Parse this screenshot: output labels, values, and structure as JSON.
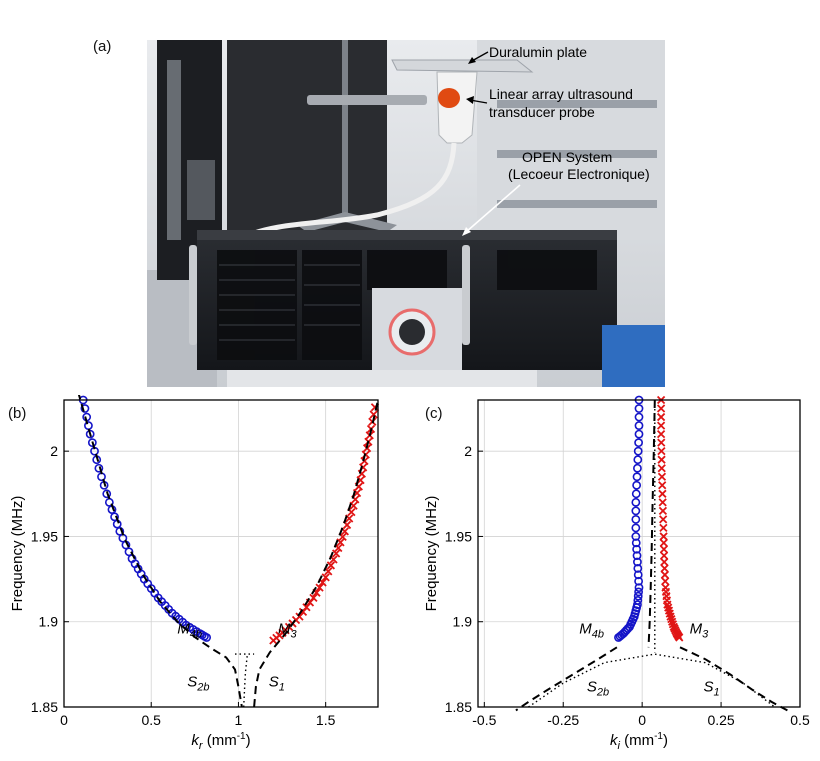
{
  "panels": {
    "a": "(a)",
    "b": "(b)",
    "c": "(c)"
  },
  "photo_annotations": {
    "plate": "Duralumin plate",
    "probe_line1": "Linear array ultrasound",
    "probe_line2": "transducer probe",
    "system_line1": "OPEN System",
    "system_line2": "(Lecoeur Electronique)"
  },
  "colors": {
    "blue": "#1515c8",
    "red": "#e01515",
    "black": "#000000"
  },
  "chart_data": [
    {
      "type": "line",
      "panel": "(b)",
      "xlabel_main": "k",
      "xlabel_sub": "r",
      "xlabel_unit": " (mm",
      "xlabel_sup": "-1",
      "xlabel_close": ")",
      "ylabel": "Frequency (MHz)",
      "xlim": [
        0,
        1.8
      ],
      "ylim": [
        1.85,
        2.03
      ],
      "xticks": [
        "0",
        "0.5",
        "1",
        "1.5"
      ],
      "xtick_values": [
        0,
        0.5,
        1,
        1.5
      ],
      "yticks": [
        "1.85",
        "1.9",
        "1.95",
        "2"
      ],
      "ytick_values": [
        1.85,
        1.9,
        1.95,
        2.0
      ],
      "grid": true,
      "labels": [
        {
          "main": "M",
          "sub": "4b",
          "x": 0.72,
          "y": 1.893
        },
        {
          "main": "M",
          "sub": "3",
          "x": 1.28,
          "y": 1.893
        },
        {
          "main": "S",
          "sub": "2b",
          "x": 0.77,
          "y": 1.862
        },
        {
          "main": "S",
          "sub": "1",
          "x": 1.22,
          "y": 1.862
        }
      ],
      "series": [
        {
          "style": "circles",
          "color": "#1515c8",
          "x": [
            0.11,
            0.15,
            0.2,
            0.26,
            0.32,
            0.39,
            0.46,
            0.54,
            0.62,
            0.7,
            0.78,
            0.83
          ],
          "y": [
            2.03,
            2.01,
            1.99,
            1.97,
            1.953,
            1.937,
            1.925,
            1.914,
            1.905,
            1.898,
            1.893,
            1.89
          ]
        },
        {
          "style": "crosses",
          "color": "#e01515",
          "x": [
            1.2,
            1.27,
            1.35,
            1.43,
            1.5,
            1.56,
            1.61,
            1.66,
            1.7,
            1.73,
            1.76,
            1.79
          ],
          "y": [
            1.889,
            1.895,
            1.903,
            1.914,
            1.926,
            1.94,
            1.953,
            1.968,
            1.983,
            1.998,
            2.013,
            2.03
          ]
        },
        {
          "style": "dashed",
          "color": "#000000",
          "x": [
            0.08,
            0.15,
            0.25,
            0.35,
            0.45,
            0.55,
            0.65,
            0.75,
            0.85,
            0.93,
            0.98,
            1.0,
            1.02
          ],
          "y": [
            2.035,
            2.01,
            1.975,
            1.948,
            1.928,
            1.912,
            1.9,
            1.891,
            1.884,
            1.879,
            1.872,
            1.862,
            1.85
          ]
        },
        {
          "style": "dashed",
          "color": "#000000",
          "x": [
            1.09,
            1.1,
            1.12,
            1.18,
            1.27,
            1.36,
            1.45,
            1.53,
            1.6,
            1.66,
            1.71,
            1.76,
            1.8
          ],
          "y": [
            1.85,
            1.862,
            1.872,
            1.882,
            1.893,
            1.906,
            1.921,
            1.938,
            1.956,
            1.974,
            1.992,
            2.012,
            2.03
          ]
        },
        {
          "style": "dotted",
          "color": "#000000",
          "x": [
            1.03,
            1.035,
            1.04,
            1.045,
            1.05
          ],
          "y": [
            1.85,
            1.86,
            1.87,
            1.875,
            1.88
          ]
        },
        {
          "style": "dotted",
          "color": "#000000",
          "x": [
            0.98,
            1.03,
            1.09
          ],
          "y": [
            1.881,
            1.881,
            1.881
          ]
        }
      ]
    },
    {
      "type": "line",
      "panel": "(c)",
      "xlabel_main": "k",
      "xlabel_sub": "i",
      "xlabel_unit": " (mm",
      "xlabel_sup": "-1",
      "xlabel_close": ")",
      "ylabel": "Frequency (MHz)",
      "xlim": [
        -0.52,
        0.5
      ],
      "ylim": [
        1.85,
        2.03
      ],
      "xticks": [
        "-0.5",
        "-0.25",
        "0",
        "0.25",
        "0.5"
      ],
      "xtick_values": [
        -0.5,
        -0.25,
        0,
        0.25,
        0.5
      ],
      "yticks": [
        "1.85",
        "1.9",
        "1.95",
        "2"
      ],
      "ytick_values": [
        1.85,
        1.9,
        1.95,
        2.0
      ],
      "grid": true,
      "labels": [
        {
          "main": "M",
          "sub": "4b",
          "x": -0.16,
          "y": 1.893
        },
        {
          "main": "M",
          "sub": "3",
          "x": 0.18,
          "y": 1.893
        },
        {
          "main": "S",
          "sub": "2b",
          "x": -0.14,
          "y": 1.859
        },
        {
          "main": "S",
          "sub": "1",
          "x": 0.22,
          "y": 1.859
        }
      ],
      "series": [
        {
          "style": "circles",
          "color": "#1515c8",
          "x": [
            -0.01,
            -0.01,
            -0.015,
            -0.02,
            -0.02,
            -0.015,
            -0.01,
            -0.015,
            -0.025,
            -0.04,
            -0.06,
            -0.08
          ],
          "y": [
            2.03,
            2.01,
            1.99,
            1.97,
            1.95,
            1.935,
            1.92,
            1.91,
            1.903,
            1.897,
            1.893,
            1.89
          ]
        },
        {
          "style": "crosses",
          "color": "#e01515",
          "x": [
            0.06,
            0.06,
            0.062,
            0.065,
            0.068,
            0.07,
            0.074,
            0.08,
            0.09,
            0.1,
            0.11,
            0.12
          ],
          "y": [
            2.03,
            2.01,
            1.99,
            1.97,
            1.95,
            1.935,
            1.92,
            1.91,
            1.903,
            1.897,
            1.893,
            1.89
          ]
        },
        {
          "style": "dashed",
          "color": "#000000",
          "x": [
            0.04,
            0.037,
            0.033,
            0.03,
            0.027,
            0.024,
            0.02
          ],
          "y": [
            2.03,
            2.0,
            1.97,
            1.94,
            1.92,
            1.9,
            1.885
          ]
        },
        {
          "style": "dashed",
          "color": "#000000",
          "x": [
            -0.08,
            -0.14,
            -0.22,
            -0.3,
            -0.36,
            -0.4
          ],
          "y": [
            1.885,
            1.878,
            1.869,
            1.86,
            1.853,
            1.848
          ]
        },
        {
          "style": "dashed",
          "color": "#000000",
          "x": [
            0.12,
            0.2,
            0.28,
            0.35,
            0.41,
            0.46
          ],
          "y": [
            1.885,
            1.878,
            1.869,
            1.86,
            1.853,
            1.848
          ]
        },
        {
          "style": "dotted",
          "color": "#000000",
          "x": [
            0.04,
            0.04,
            0.04
          ],
          "y": [
            2.03,
            1.95,
            1.882
          ]
        },
        {
          "style": "dotted",
          "color": "#000000",
          "x": [
            -0.36,
            -0.25,
            -0.12,
            0.04,
            0.2,
            0.32,
            0.42
          ],
          "y": [
            1.85,
            1.864,
            1.876,
            1.881,
            1.876,
            1.864,
            1.85
          ]
        }
      ]
    }
  ]
}
